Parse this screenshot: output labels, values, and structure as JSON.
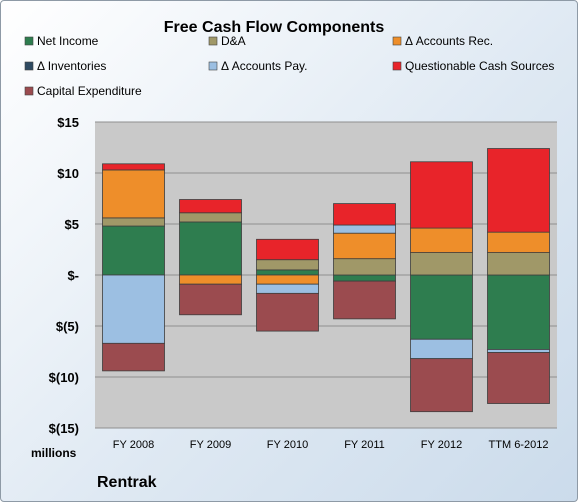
{
  "chart_data": {
    "type": "bar",
    "stacked": true,
    "title": "Free Cash Flow Components",
    "unit_label": "millions",
    "company": "Rentrak",
    "categories": [
      "FY 2008",
      "FY 2009",
      "FY 2010",
      "FY 2011",
      "FY 2012",
      "TTM 6-2012"
    ],
    "ylim": [
      -15,
      15
    ],
    "yticks": [
      15,
      10,
      5,
      0,
      -5,
      -10,
      -15
    ],
    "ytick_labels": [
      "$15",
      "$10",
      "$5",
      "$-",
      "$(5)",
      "$(10)",
      "$(15)"
    ],
    "grid": true,
    "legend_position": "top",
    "series": [
      {
        "name": "Net Income",
        "color": "#2e7d4f",
        "values": [
          4.8,
          5.2,
          0.5,
          -0.6,
          -6.3,
          -7.3
        ]
      },
      {
        "name": "D&A",
        "color": "#a09868",
        "values": [
          0.8,
          0.9,
          1.0,
          1.6,
          2.2,
          2.2
        ]
      },
      {
        "name": "Δ Accounts Rec.",
        "color": "#ee8e2a",
        "values": [
          4.7,
          -0.9,
          -0.9,
          2.5,
          2.4,
          2.0
        ]
      },
      {
        "name": "Δ Inventories",
        "color": "#2e4a62",
        "values": [
          0,
          0,
          0,
          0,
          0,
          0
        ]
      },
      {
        "name": "Δ Accounts Pay.",
        "color": "#9cbfe2",
        "values": [
          -6.7,
          0,
          -0.9,
          0.8,
          -1.9,
          -0.3
        ]
      },
      {
        "name": "Questionable Cash Sources",
        "color": "#e8242a",
        "values": [
          0.6,
          1.3,
          2.0,
          2.1,
          6.5,
          8.2
        ]
      },
      {
        "name": "Capital Expenditure",
        "color": "#9b4b4f",
        "values": [
          -2.7,
          -3.0,
          -3.7,
          -3.7,
          -5.2,
          -5.0
        ]
      }
    ]
  }
}
